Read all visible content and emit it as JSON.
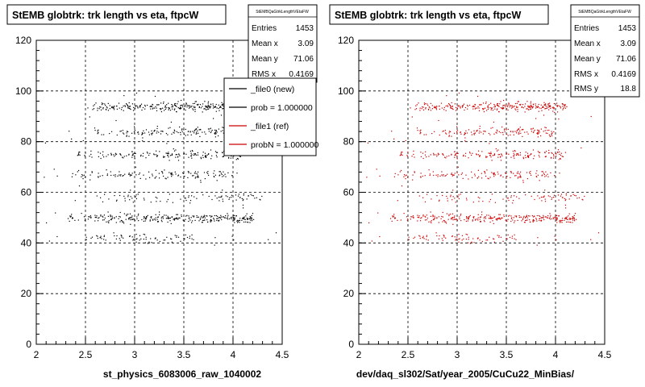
{
  "canvas": {
    "background": "#ffffff",
    "axis_color": "#000000",
    "grid_color": "#000000"
  },
  "footer_text": "",
  "chart_data": [
    {
      "type": "scatter",
      "title": "StEMB globtrk: trk length vs eta, ftpcW",
      "xlabel": "st_physics_6083006_raw_1040002",
      "ylabel": "",
      "xlim": [
        2,
        4.5
      ],
      "ylim": [
        0,
        120
      ],
      "x_ticks": [
        "2",
        "2.5",
        "3",
        "3.5",
        "4",
        "4.5"
      ],
      "y_ticks": [
        "0",
        "20",
        "40",
        "60",
        "80",
        "100",
        "120"
      ],
      "grid": true,
      "marker_color": "#000000",
      "stats": {
        "name": "StEMBQaGtrkLengthVEtaFW",
        "rows": [
          {
            "label": "Entries",
            "value": "1453"
          },
          {
            "label": "Mean x",
            "value": "3.09"
          },
          {
            "label": "Mean y",
            "value": "71.06"
          },
          {
            "label": "RMS x",
            "value": "0.4169"
          }
        ]
      },
      "legend": {
        "placement": "top-right",
        "entries": [
          {
            "label": "_file0 (new)",
            "color": "#000000"
          },
          {
            "label": "prob = 1.000000",
            "color": "#000000"
          },
          {
            "label": "_file1 (ref)",
            "color": "#cc0000"
          },
          {
            "label": "probN = 1.000000",
            "color": "#cc0000"
          }
        ]
      },
      "bands": [
        {
          "y": 42,
          "xmin": 2.45,
          "xmax": 3.6,
          "count": 70
        },
        {
          "y": 50,
          "xmin": 2.3,
          "xmax": 4.2,
          "count": 300
        },
        {
          "y": 58,
          "xmin": 2.3,
          "xmax": 4.3,
          "count": 80
        },
        {
          "y": 67,
          "xmin": 2.35,
          "xmax": 4.0,
          "count": 130
        },
        {
          "y": 75,
          "xmin": 2.4,
          "xmax": 4.1,
          "count": 170
        },
        {
          "y": 84,
          "xmin": 2.55,
          "xmax": 4.0,
          "count": 140
        },
        {
          "y": 94,
          "xmin": 2.5,
          "xmax": 4.1,
          "count": 280
        }
      ]
    },
    {
      "type": "scatter",
      "title": "StEMB globtrk: trk length vs eta, ftpcW",
      "xlabel": "dev/daq_sl302/Sat/year_2005/CuCu22_MinBias/",
      "ylabel": "",
      "xlim": [
        2,
        4.5
      ],
      "ylim": [
        0,
        120
      ],
      "x_ticks": [
        "2",
        "2.5",
        "3",
        "3.5",
        "4",
        "4.5"
      ],
      "y_ticks": [
        "0",
        "20",
        "40",
        "60",
        "80",
        "100",
        "120"
      ],
      "grid": true,
      "marker_color": "#cc0000",
      "stats": {
        "name": "StEMBQaGtrkLengthVEtaFW",
        "rows": [
          {
            "label": "Entries",
            "value": "1453"
          },
          {
            "label": "Mean x",
            "value": "3.09"
          },
          {
            "label": "Mean y",
            "value": "71.06"
          },
          {
            "label": "RMS x",
            "value": "0.4169"
          },
          {
            "label": "RMS y",
            "value": "18.8"
          }
        ]
      },
      "legend": null,
      "bands": [
        {
          "y": 42,
          "xmin": 2.45,
          "xmax": 3.6,
          "count": 70
        },
        {
          "y": 50,
          "xmin": 2.3,
          "xmax": 4.2,
          "count": 300
        },
        {
          "y": 58,
          "xmin": 2.3,
          "xmax": 4.3,
          "count": 80
        },
        {
          "y": 67,
          "xmin": 2.35,
          "xmax": 4.0,
          "count": 130
        },
        {
          "y": 75,
          "xmin": 2.4,
          "xmax": 4.1,
          "count": 170
        },
        {
          "y": 84,
          "xmin": 2.55,
          "xmax": 4.0,
          "count": 140
        },
        {
          "y": 94,
          "xmin": 2.5,
          "xmax": 4.1,
          "count": 280
        }
      ]
    }
  ]
}
